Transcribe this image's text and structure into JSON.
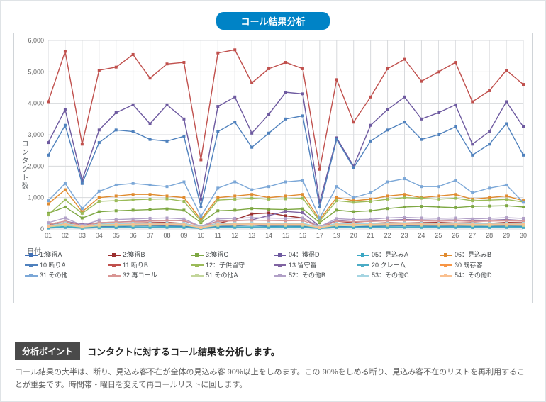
{
  "title": "コール結果分析",
  "ylabel": "コンタクト数",
  "xlabel": "日付",
  "ylim": [
    0,
    6000
  ],
  "ytick_step": 1000,
  "grid_color": "#d7d9dc",
  "background": "#ffffff",
  "x_categories": [
    "01",
    "02",
    "03",
    "04",
    "05",
    "06",
    "07",
    "08",
    "09",
    "10",
    "11",
    "12",
    "13",
    "14",
    "15",
    "16",
    "17",
    "19",
    "20",
    "21",
    "22",
    "23",
    "24",
    "25",
    "26",
    "27",
    "28",
    "29",
    "30"
  ],
  "series": [
    {
      "id": "s1",
      "label": "1:獲得A",
      "color": "#3f6fb5",
      "vals": [
        80,
        120,
        60,
        80,
        90,
        100,
        110,
        100,
        90,
        40,
        80,
        100,
        120,
        90,
        100,
        90,
        30,
        80,
        70,
        90,
        100,
        110,
        100,
        90,
        100,
        90,
        80,
        100,
        90
      ]
    },
    {
      "id": "s2",
      "label": "2:獲得B",
      "color": "#9b2f2f",
      "vals": [
        120,
        200,
        150,
        170,
        180,
        190,
        200,
        210,
        180,
        60,
        180,
        300,
        480,
        510,
        420,
        350,
        50,
        250,
        200,
        180,
        200,
        190,
        200,
        210,
        190,
        200,
        180,
        210,
        200
      ]
    },
    {
      "id": "s3",
      "label": "3:獲得C",
      "color": "#7ea843",
      "vals": [
        500,
        700,
        350,
        550,
        580,
        600,
        620,
        640,
        600,
        200,
        580,
        600,
        650,
        630,
        620,
        640,
        200,
        600,
        550,
        580,
        650,
        700,
        720,
        700,
        680,
        720,
        730,
        740,
        700
      ]
    },
    {
      "id": "s4",
      "label": "04：獲得D",
      "color": "#6e5aa0",
      "vals": [
        2750,
        3800,
        1550,
        3150,
        3700,
        3950,
        3350,
        3950,
        3500,
        950,
        3900,
        4200,
        3050,
        3650,
        4350,
        4300,
        850,
        2900,
        2000,
        3300,
        3800,
        4200,
        3500,
        3700,
        3950,
        2700,
        3100,
        4050,
        3250
      ]
    },
    {
      "id": "s5",
      "label": "05：見込みA",
      "color": "#3aa7c4",
      "vals": [
        50,
        80,
        40,
        50,
        60,
        65,
        70,
        75,
        65,
        20,
        60,
        65,
        70,
        68,
        72,
        70,
        20,
        65,
        60,
        62,
        68,
        70,
        72,
        70,
        68,
        70,
        68,
        72,
        70
      ]
    },
    {
      "id": "s6",
      "label": "06：見込みB",
      "color": "#e08b2f",
      "vals": [
        800,
        1250,
        550,
        1000,
        1050,
        1100,
        1100,
        1050,
        1000,
        300,
        1000,
        1050,
        1100,
        1000,
        1050,
        1100,
        300,
        1000,
        900,
        950,
        1050,
        1100,
        1000,
        1050,
        1100,
        950,
        1000,
        1050,
        900
      ]
    },
    {
      "id": "s10",
      "label": "10:断りA",
      "color": "#4f81bd",
      "vals": [
        2350,
        3300,
        1450,
        2750,
        3150,
        3100,
        2850,
        2800,
        2950,
        700,
        3100,
        3400,
        2600,
        3050,
        3500,
        3600,
        700,
        2850,
        1950,
        2800,
        3150,
        3400,
        2850,
        3000,
        3250,
        2350,
        2700,
        3350,
        2350
      ]
    },
    {
      "id": "s11",
      "label": "11:断りB",
      "color": "#c0504d",
      "vals": [
        4050,
        5650,
        2700,
        5050,
        5150,
        5550,
        4800,
        5250,
        5300,
        2200,
        5600,
        5700,
        4650,
        5100,
        5300,
        5100,
        1900,
        4750,
        3400,
        4200,
        5100,
        5400,
        4700,
        5000,
        5300,
        4050,
        4400,
        5050,
        4600
      ]
    },
    {
      "id": "s12",
      "label": "12：子供留守",
      "color": "#9bbb59",
      "vals": [
        450,
        930,
        500,
        880,
        900,
        930,
        950,
        960,
        880,
        250,
        920,
        950,
        980,
        950,
        960,
        980,
        250,
        900,
        850,
        880,
        950,
        1000,
        980,
        950,
        980,
        900,
        920,
        940,
        860
      ]
    },
    {
      "id": "s13",
      "label": "13:留守番",
      "color": "#8064a2",
      "vals": [
        150,
        250,
        150,
        200,
        220,
        240,
        260,
        280,
        260,
        80,
        250,
        270,
        290,
        430,
        560,
        520,
        80,
        270,
        230,
        250,
        280,
        300,
        290,
        280,
        290,
        260,
        280,
        300,
        270
      ]
    },
    {
      "id": "s20",
      "label": "20:クレーム",
      "color": "#4bacc6",
      "vals": [
        30,
        50,
        25,
        40,
        45,
        48,
        50,
        52,
        48,
        15,
        48,
        50,
        52,
        50,
        48,
        50,
        15,
        48,
        45,
        46,
        50,
        52,
        50,
        48,
        50,
        46,
        48,
        50,
        48
      ]
    },
    {
      "id": "s30",
      "label": "30:既存客",
      "color": "#f79646",
      "vals": [
        100,
        180,
        90,
        150,
        160,
        170,
        175,
        180,
        170,
        50,
        170,
        175,
        180,
        175,
        170,
        175,
        50,
        170,
        160,
        165,
        175,
        180,
        175,
        170,
        175,
        165,
        170,
        175,
        170
      ]
    },
    {
      "id": "s31",
      "label": "31:その他",
      "color": "#7ba7d7",
      "vals": [
        900,
        1450,
        650,
        1200,
        1400,
        1450,
        1400,
        1350,
        1500,
        400,
        1300,
        1500,
        1250,
        1350,
        1500,
        1550,
        350,
        1350,
        1000,
        1150,
        1500,
        1600,
        1350,
        1350,
        1550,
        1150,
        1300,
        1400,
        850
      ]
    },
    {
      "id": "s32",
      "label": "32:再コール",
      "color": "#d99694",
      "vals": [
        150,
        250,
        100,
        200,
        220,
        230,
        250,
        260,
        270,
        70,
        240,
        260,
        280,
        270,
        260,
        270,
        70,
        250,
        230,
        240,
        260,
        270,
        260,
        250,
        260,
        240,
        250,
        260,
        250
      ]
    },
    {
      "id": "s51",
      "label": "51:その他A",
      "color": "#c3d69b",
      "vals": [
        70,
        120,
        60,
        100,
        110,
        115,
        120,
        125,
        120,
        40,
        115,
        120,
        125,
        120,
        118,
        120,
        40,
        115,
        110,
        112,
        120,
        125,
        120,
        118,
        120,
        112,
        115,
        120,
        115
      ]
    },
    {
      "id": "s52",
      "label": "52：その他B",
      "color": "#b1a0c7",
      "vals": [
        200,
        350,
        120,
        280,
        300,
        320,
        340,
        350,
        320,
        80,
        320,
        340,
        360,
        350,
        340,
        350,
        80,
        330,
        300,
        310,
        350,
        370,
        350,
        340,
        350,
        320,
        340,
        360,
        340
      ]
    },
    {
      "id": "s53",
      "label": "53：その他C",
      "color": "#a5d5e2",
      "vals": [
        110,
        190,
        80,
        160,
        170,
        180,
        185,
        190,
        180,
        60,
        175,
        185,
        190,
        185,
        180,
        185,
        60,
        180,
        170,
        175,
        185,
        190,
        185,
        180,
        185,
        175,
        180,
        185,
        180
      ]
    },
    {
      "id": "s54",
      "label": "54：その他D",
      "color": "#fac090",
      "vals": [
        90,
        150,
        70,
        130,
        140,
        145,
        150,
        155,
        145,
        45,
        145,
        150,
        155,
        150,
        148,
        150,
        45,
        145,
        140,
        142,
        150,
        155,
        150,
        148,
        150,
        142,
        145,
        150,
        145
      ]
    }
  ],
  "analysis": {
    "tag": "分析ポイント",
    "headline": "コンタクトに対するコール結果を分析します。",
    "body": "コール結果の大半は、断り、見込み客不在が全体の見込み客 90%以上をしめます。この 90%をしめる断り、見込み客不在のリストを再利用することが重要です。時間帯・曜日を変えて再コールリストに回します。"
  }
}
